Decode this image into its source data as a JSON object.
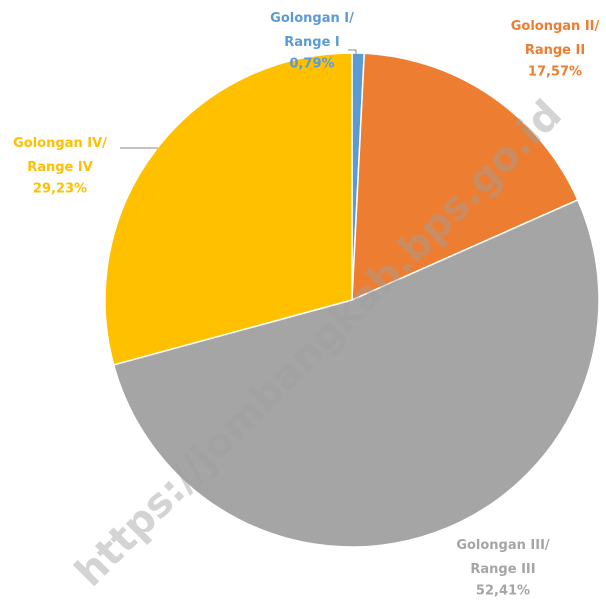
{
  "chart_data": {
    "type": "pie",
    "categories": [
      "Golongan I/ Range I",
      "Golongan II/ Range II",
      "Golongan III/ Range III",
      "Golongan IV/ Range IV"
    ],
    "values": [
      0.79,
      17.57,
      52.41,
      29.23
    ],
    "value_labels": [
      "0,79%",
      "17,57%",
      "52,41%",
      "29,23%"
    ],
    "colors": [
      "#5b9bd5",
      "#ed7d31",
      "#a5a5a5",
      "#ffc000"
    ],
    "watermark": "https://jombangkab.bps.go.id"
  }
}
